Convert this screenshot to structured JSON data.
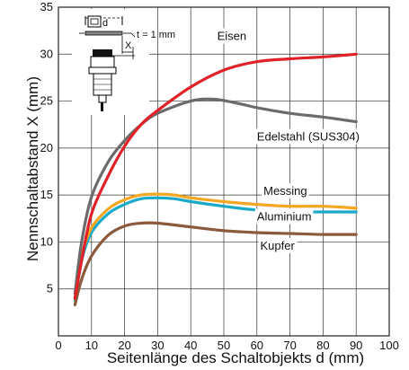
{
  "chart_data": {
    "type": "line",
    "title": "",
    "xlabel": "Seitenlänge des Schaltobjekts d (mm)",
    "ylabel": "Nennschaltabstand X (mm)",
    "xlim": [
      0,
      100
    ],
    "ylim": [
      0,
      35
    ],
    "xticks": [
      0,
      10,
      20,
      30,
      40,
      50,
      60,
      70,
      80,
      90,
      100
    ],
    "yticks": [
      5,
      10,
      15,
      20,
      25,
      30,
      35
    ],
    "grid": true,
    "series": [
      {
        "name": "Eisen",
        "color": "#e02128",
        "label_at": [
          48,
          31.5
        ],
        "x": [
          5,
          7,
          10,
          15,
          20,
          25,
          30,
          40,
          50,
          60,
          70,
          80,
          90
        ],
        "y": [
          4,
          8,
          13,
          17,
          20.2,
          22.5,
          24,
          26.5,
          28.3,
          29.2,
          29.5,
          29.7,
          30
        ]
      },
      {
        "name": "Edelstahl (SUS304)",
        "color": "#6b6b6b",
        "label_at": [
          60,
          20.8
        ],
        "x": [
          5,
          7,
          10,
          15,
          20,
          25,
          30,
          40,
          47,
          55,
          60,
          70,
          80,
          90
        ],
        "y": [
          4.5,
          10,
          14.8,
          18.5,
          20.8,
          22.5,
          23.7,
          25,
          25.2,
          24.7,
          24.3,
          23.7,
          23.3,
          22.8
        ]
      },
      {
        "name": "Messing",
        "color": "#f5a623",
        "label_at": [
          62,
          15
        ],
        "x": [
          5,
          7,
          10,
          15,
          20,
          25,
          30,
          35,
          40,
          50,
          60,
          70,
          80,
          90
        ],
        "y": [
          4,
          8.5,
          11.5,
          13.5,
          14.5,
          15,
          15.1,
          15,
          14.7,
          14.3,
          14,
          13.8,
          13.8,
          13.6
        ]
      },
      {
        "name": "Aluminium",
        "color": "#1aaac8",
        "label_at": [
          60,
          12.3
        ],
        "x": [
          5,
          7,
          10,
          15,
          20,
          25,
          30,
          35,
          40,
          50,
          60,
          70,
          80,
          90
        ],
        "y": [
          3.8,
          8,
          11,
          13,
          14,
          14.6,
          14.7,
          14.6,
          14.3,
          13.8,
          13.4,
          13.2,
          13.2,
          13.2
        ]
      },
      {
        "name": "Kupfer",
        "color": "#8b5a3c",
        "label_at": [
          61,
          9.2
        ],
        "x": [
          5,
          7,
          10,
          15,
          20,
          25,
          30,
          40,
          50,
          60,
          70,
          80,
          90
        ],
        "y": [
          3.3,
          6,
          8.5,
          10.7,
          11.7,
          12,
          12,
          11.6,
          11.2,
          11,
          10.9,
          10.8,
          10.8
        ]
      }
    ],
    "inset": {
      "d_label": "d",
      "x_label": "X",
      "t_label": "t = 1 mm"
    }
  }
}
